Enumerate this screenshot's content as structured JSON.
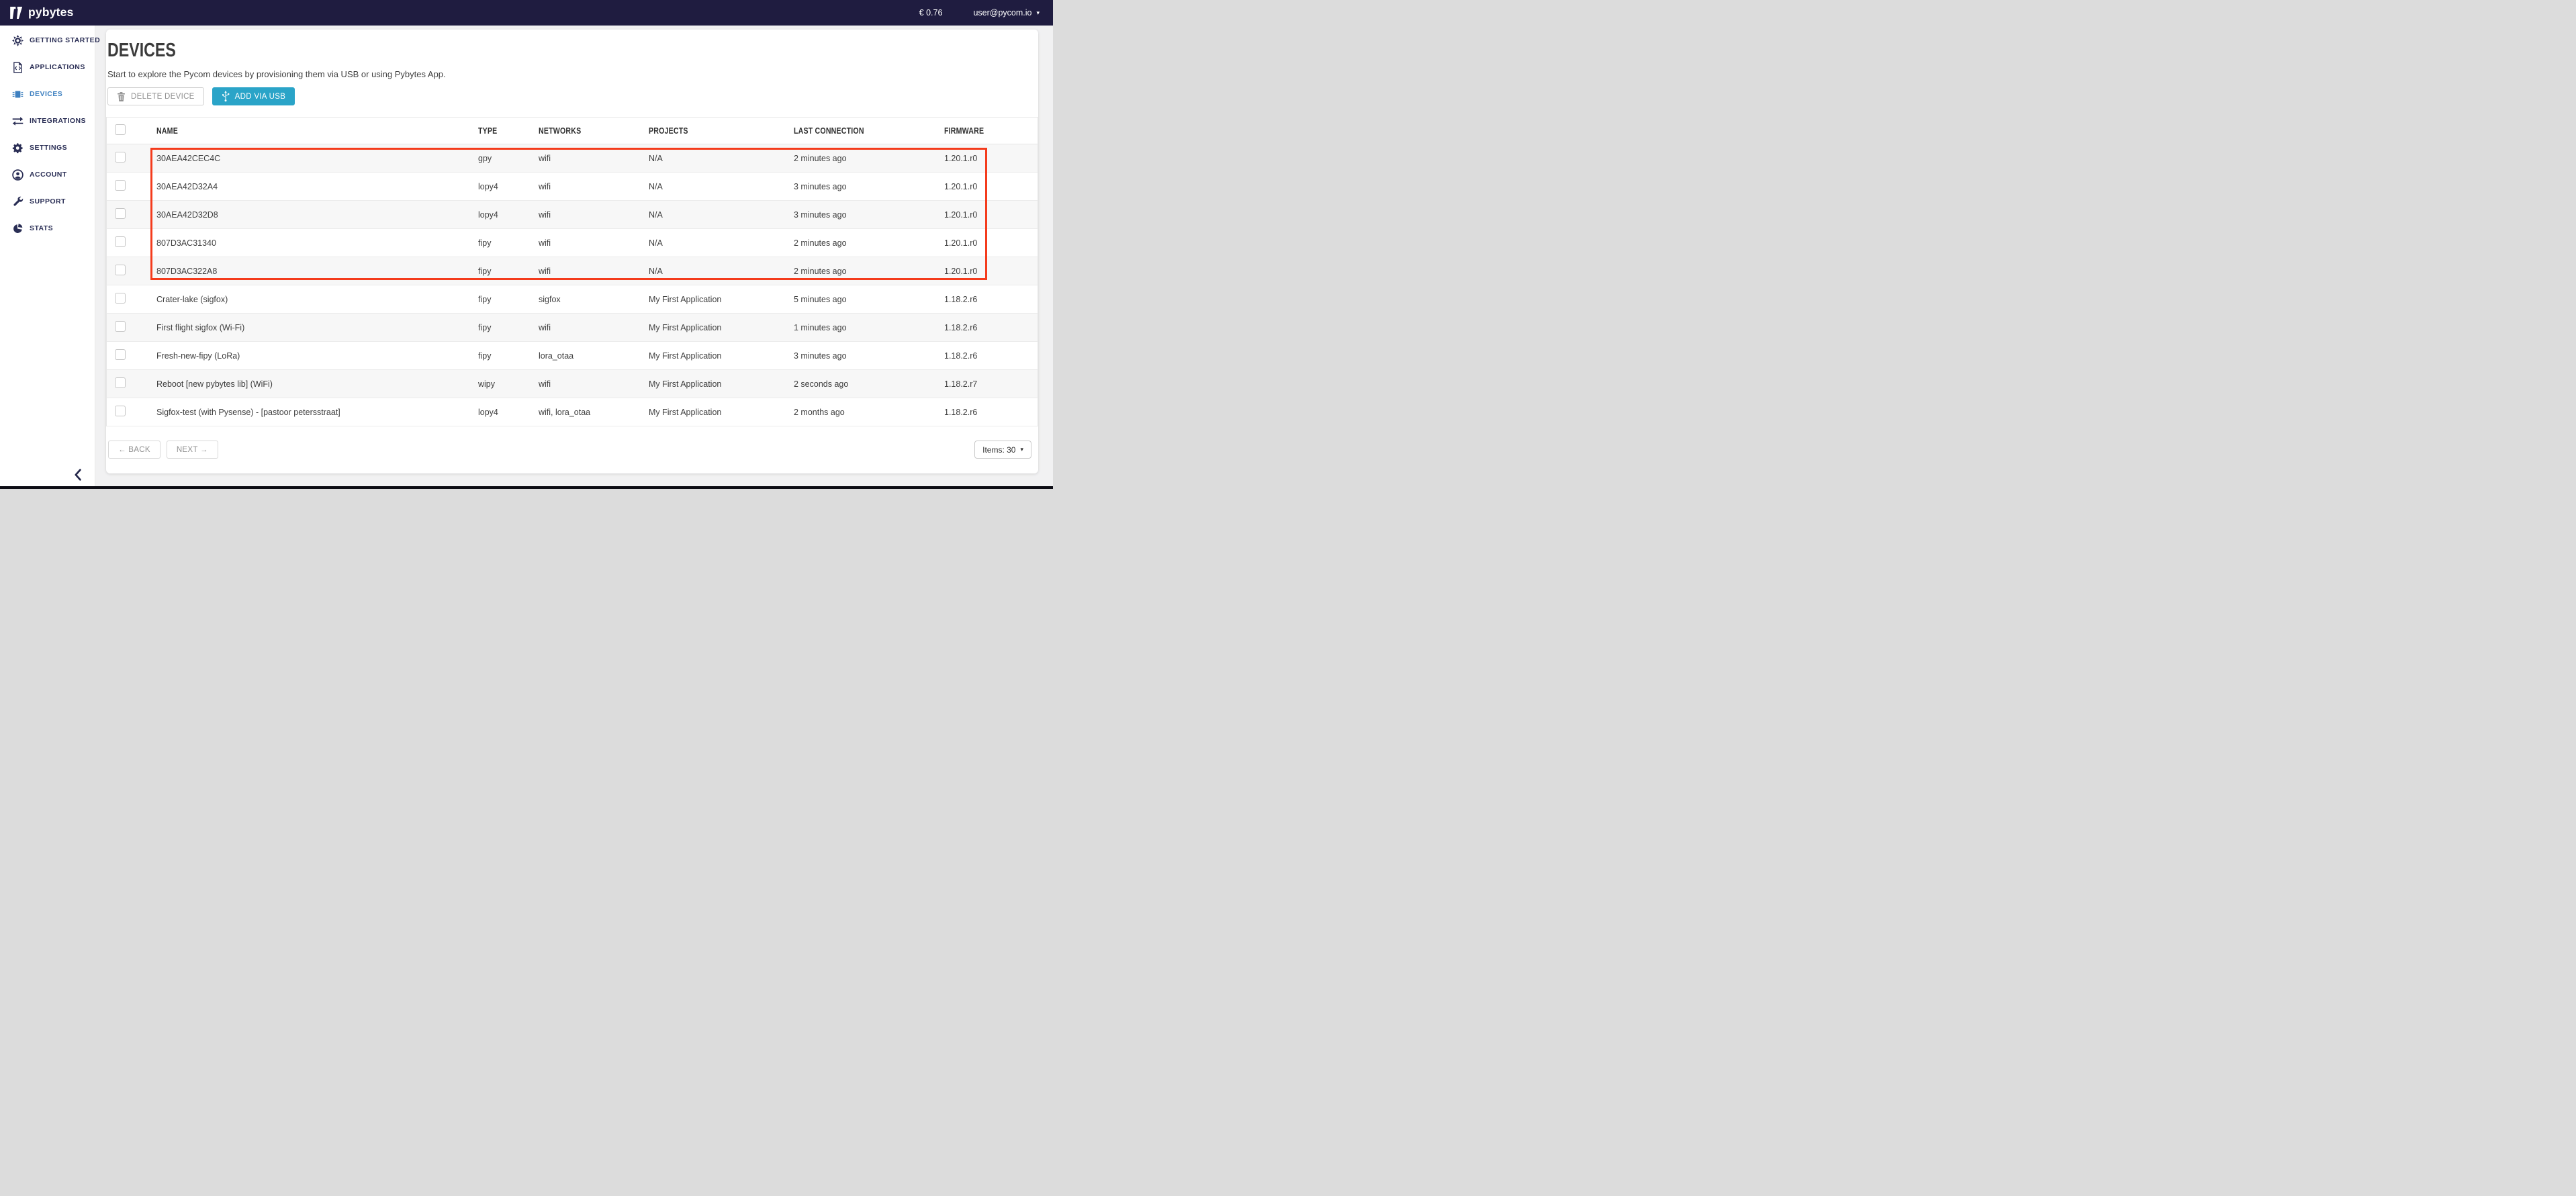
{
  "topbar": {
    "logo_text": "pybytes",
    "balance": "€ 0.76",
    "user_email": "user@pycom.io"
  },
  "glyphs": {
    "caret_down": "▾"
  },
  "sidebar": {
    "items": [
      {
        "id": "getting-started",
        "icon": "sun-icon",
        "label": "GETTING STARTED",
        "active": false
      },
      {
        "id": "applications",
        "icon": "code-file-icon",
        "label": "APPLICATIONS",
        "active": false
      },
      {
        "id": "devices",
        "icon": "chip-icon",
        "label": "DEVICES",
        "active": true
      },
      {
        "id": "integrations",
        "icon": "arrows-icon",
        "label": "INTEGRATIONS",
        "active": false
      },
      {
        "id": "settings",
        "icon": "gear-icon",
        "label": "SETTINGS",
        "active": false
      },
      {
        "id": "account",
        "icon": "user-icon",
        "label": "ACCOUNT",
        "active": false
      },
      {
        "id": "support",
        "icon": "wrench-icon",
        "label": "SUPPORT",
        "active": false
      },
      {
        "id": "stats",
        "icon": "pie-chart-icon",
        "label": "STATS",
        "active": false
      }
    ]
  },
  "page": {
    "title": "DEVICES",
    "subtitle": "Start to explore the Pycom devices by provisioning them via USB or using Pybytes App."
  },
  "toolbar": {
    "delete_label": "DELETE DEVICE",
    "add_label": "ADD VIA USB"
  },
  "table": {
    "headers": [
      "NAME",
      "TYPE",
      "NETWORKS",
      "PROJECTS",
      "LAST CONNECTION",
      "FIRMWARE"
    ],
    "rows": [
      {
        "name": "30AEA42CEC4C",
        "type": "gpy",
        "networks": "wifi",
        "projects": "N/A",
        "last_connection": "2 minutes ago",
        "firmware": "1.20.1.r0",
        "highlighted": true
      },
      {
        "name": "30AEA42D32A4",
        "type": "lopy4",
        "networks": "wifi",
        "projects": "N/A",
        "last_connection": "3 minutes ago",
        "firmware": "1.20.1.r0",
        "highlighted": true
      },
      {
        "name": "30AEA42D32D8",
        "type": "lopy4",
        "networks": "wifi",
        "projects": "N/A",
        "last_connection": "3 minutes ago",
        "firmware": "1.20.1.r0",
        "highlighted": true
      },
      {
        "name": "807D3AC31340",
        "type": "fipy",
        "networks": "wifi",
        "projects": "N/A",
        "last_connection": "2 minutes ago",
        "firmware": "1.20.1.r0",
        "highlighted": true
      },
      {
        "name": "807D3AC322A8",
        "type": "fipy",
        "networks": "wifi",
        "projects": "N/A",
        "last_connection": "2 minutes ago",
        "firmware": "1.20.1.r0",
        "highlighted": true
      },
      {
        "name": "Crater-lake (sigfox)",
        "type": "fipy",
        "networks": "sigfox",
        "projects": "My First Application",
        "last_connection": "5 minutes ago",
        "firmware": "1.18.2.r6",
        "highlighted": false
      },
      {
        "name": "First flight sigfox (Wi-Fi)",
        "type": "fipy",
        "networks": "wifi",
        "projects": "My First Application",
        "last_connection": "1 minutes ago",
        "firmware": "1.18.2.r6",
        "highlighted": false
      },
      {
        "name": "Fresh-new-fipy (LoRa)",
        "type": "fipy",
        "networks": "lora_otaa",
        "projects": "My First Application",
        "last_connection": "3 minutes ago",
        "firmware": "1.18.2.r6",
        "highlighted": false
      },
      {
        "name": "Reboot [new pybytes lib] (WiFi)",
        "type": "wipy",
        "networks": "wifi",
        "projects": "My First Application",
        "last_connection": "2 seconds ago",
        "firmware": "1.18.2.r7",
        "highlighted": false
      },
      {
        "name": "Sigfox-test (with Pysense) - [pastoor petersstraat]",
        "type": "lopy4",
        "networks": "wifi, lora_otaa",
        "projects": "My First Application",
        "last_connection": "2 months ago",
        "firmware": "1.18.2.r6",
        "highlighted": false
      }
    ]
  },
  "pagination": {
    "back_label": "← BACK",
    "next_label": "NEXT →",
    "items_label": "Items: 30"
  },
  "colors": {
    "topbar_bg": "#1f1c40",
    "nav_active_blue": "#3e80c0",
    "accent_teal": "#2aa4c8",
    "highlight_red": "#f43b1c"
  }
}
